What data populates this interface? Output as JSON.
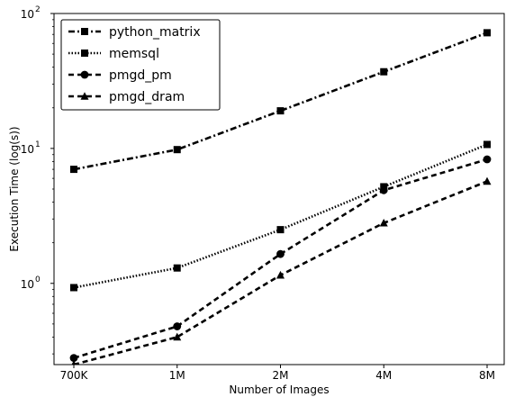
{
  "chart_data": {
    "type": "line",
    "xlabel": "Number of Images",
    "ylabel": "Execution Time (log(s))",
    "yscale": "log",
    "ylim": [
      0.25,
      100
    ],
    "categories": [
      "700K",
      "1M",
      "2M",
      "4M",
      "8M"
    ],
    "y_ticks": [
      {
        "value": 1,
        "base": "10",
        "exp": "0"
      },
      {
        "value": 10,
        "base": "10",
        "exp": "1"
      },
      {
        "value": 100,
        "base": "10",
        "exp": "2"
      }
    ],
    "legend_position": "top-left",
    "grid": false,
    "series": [
      {
        "name": "python_matrix",
        "values": [
          7.0,
          9.8,
          19.0,
          37.0,
          72.0
        ],
        "marker": "square",
        "dash": "dashdot",
        "color": "#000000"
      },
      {
        "name": "memsql",
        "values": [
          0.93,
          1.3,
          2.5,
          5.2,
          10.7
        ],
        "marker": "square",
        "dash": "dotted",
        "color": "#000000"
      },
      {
        "name": "pmgd_pm",
        "values": [
          0.28,
          0.48,
          1.65,
          4.9,
          8.3
        ],
        "marker": "circle",
        "dash": "dashed",
        "color": "#000000"
      },
      {
        "name": "pmgd_dram",
        "values": [
          0.25,
          0.4,
          1.15,
          2.8,
          5.7
        ],
        "marker": "triangle",
        "dash": "dashed",
        "color": "#000000"
      }
    ]
  }
}
